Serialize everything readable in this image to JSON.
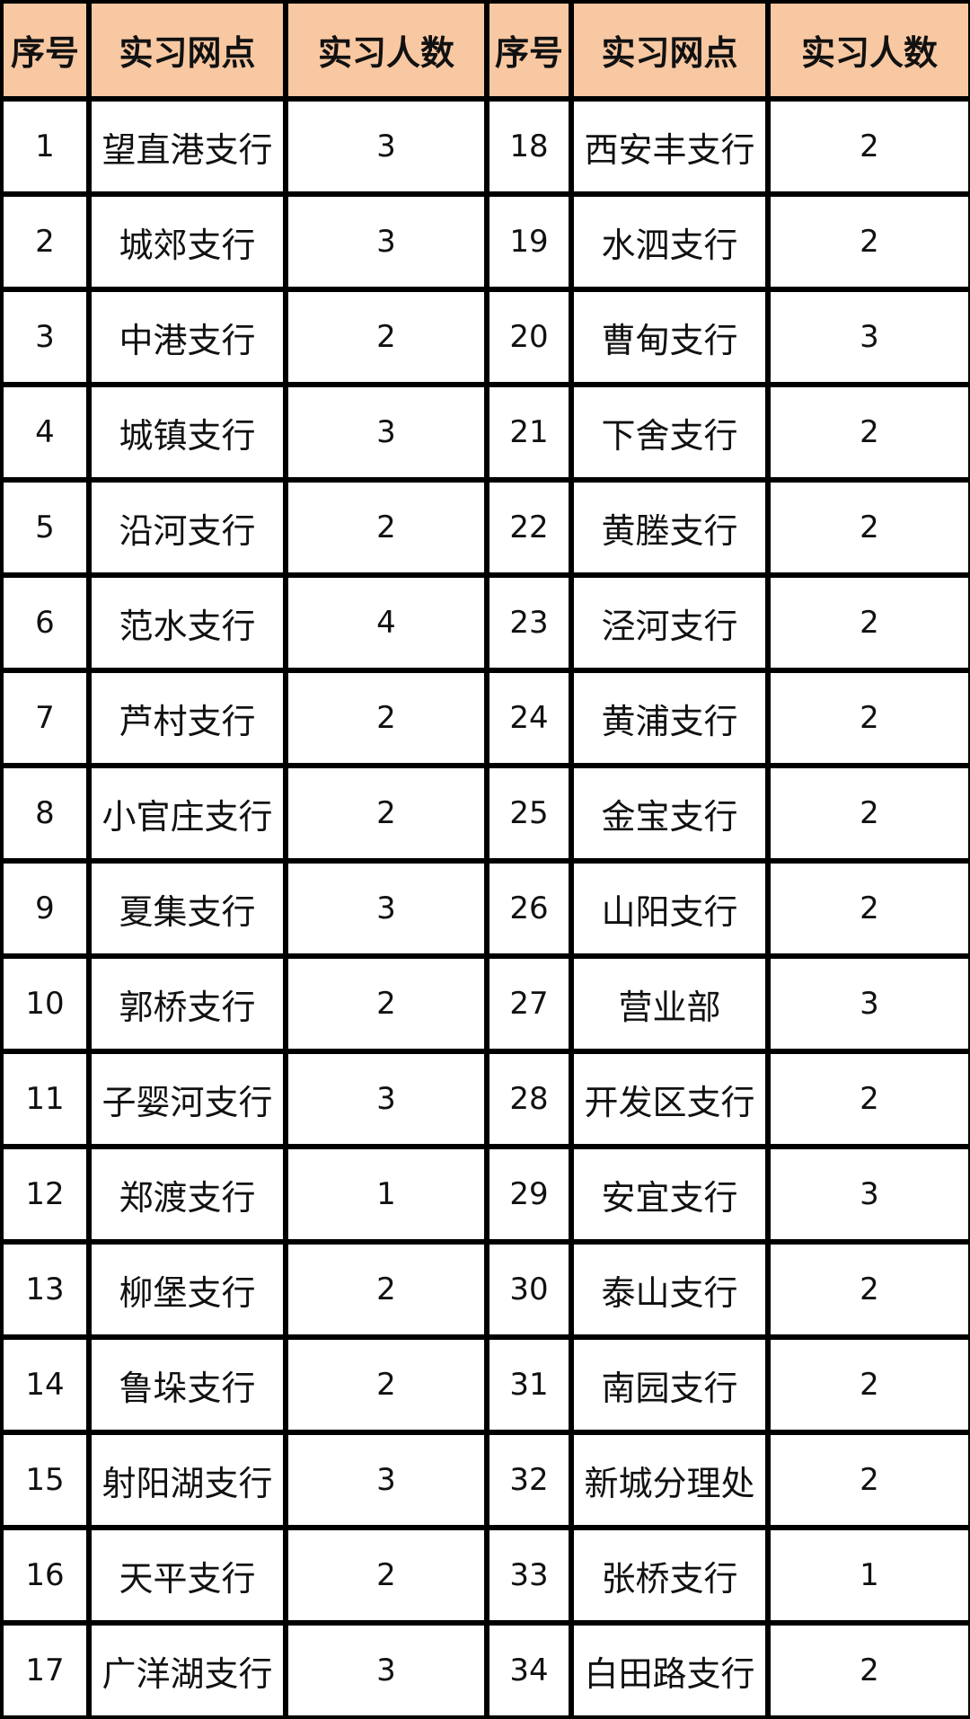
{
  "table": {
    "header": [
      "序号",
      "实习网点",
      "实习人数",
      "序号",
      "实习网点",
      "实习人数"
    ],
    "rows": [
      [
        1,
        "望直港支行",
        3,
        18,
        "西安丰支行",
        2
      ],
      [
        2,
        "城郊支行",
        3,
        19,
        "水泗支行",
        2
      ],
      [
        3,
        "中港支行",
        2,
        20,
        "曹甸支行",
        3
      ],
      [
        4,
        "城镇支行",
        3,
        21,
        "下舍支行",
        2
      ],
      [
        5,
        "沿河支行",
        2,
        22,
        "黄塍支行",
        2
      ],
      [
        6,
        "范水支行",
        4,
        23,
        "泾河支行",
        2
      ],
      [
        7,
        "芦村支行",
        2,
        24,
        "黄浦支行",
        2
      ],
      [
        8,
        "小官庄支行",
        2,
        25,
        "金宝支行",
        2
      ],
      [
        9,
        "夏集支行",
        3,
        26,
        "山阳支行",
        2
      ],
      [
        10,
        "郭桥支行",
        2,
        27,
        "营业部",
        3
      ],
      [
        11,
        "子婴河支行",
        3,
        28,
        "开发区支行",
        2
      ],
      [
        12,
        "郑渡支行",
        1,
        29,
        "安宜支行",
        3
      ],
      [
        13,
        "柳堡支行",
        2,
        30,
        "泰山支行",
        2
      ],
      [
        14,
        "鲁垛支行",
        2,
        31,
        "南园支行",
        2
      ],
      [
        15,
        "射阳湖支行",
        3,
        32,
        "新城分理处",
        2
      ],
      [
        16,
        "天平支行",
        2,
        33,
        "张桥支行",
        1
      ],
      [
        17,
        "广洋湖支行",
        3,
        34,
        "白田路支行",
        2
      ]
    ]
  }
}
